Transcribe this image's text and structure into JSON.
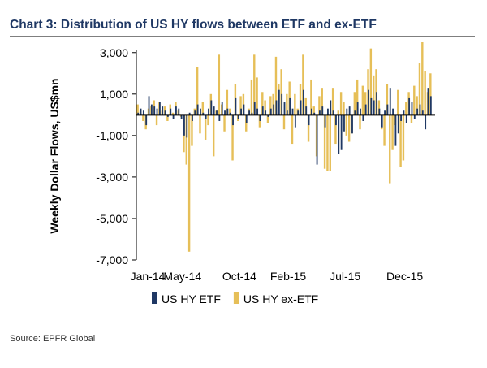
{
  "header": {
    "title": "Chart 3: Distribution of US HY flows between ETF and ex-ETF"
  },
  "source": "Source: EPFR Global",
  "chart_data": {
    "type": "bar",
    "title": "Chart 3: Distribution of US HY flows between ETF and ex-ETF",
    "xlabel": "",
    "ylabel": "Weekly Dollar Flows, US$mn",
    "ylim": [
      -7000,
      3500
    ],
    "yticks": [
      3000,
      1000,
      -1000,
      -3000,
      -5000,
      -7000
    ],
    "ytick_labels": [
      "3,000",
      "1,000",
      "-1,000",
      "-3,000",
      "-5,000",
      "-7,000"
    ],
    "xtick_labels": [
      "Jan-14",
      "May-14",
      "Oct-14",
      "Feb-15",
      "Jul-15",
      "Dec-15"
    ],
    "xtick_week_index": [
      0,
      17,
      38,
      56,
      77,
      99
    ],
    "grid": false,
    "legend_position": "bottom",
    "series": [
      {
        "name": "US HY ETF",
        "color": "#1f3864",
        "values": [
          100,
          300,
          200,
          -500,
          900,
          500,
          400,
          300,
          600,
          400,
          200,
          -100,
          300,
          -200,
          400,
          300,
          -200,
          -1000,
          -1100,
          100,
          -300,
          200,
          500,
          300,
          100,
          -200,
          300,
          700,
          400,
          200,
          -300,
          600,
          200,
          300,
          100,
          -500,
          800,
          -200,
          300,
          500,
          -400,
          200,
          100,
          600,
          300,
          -300,
          400,
          200,
          -100,
          300,
          500,
          700,
          1200,
          1000,
          600,
          200,
          800,
          300,
          -600,
          200,
          700,
          1200,
          400,
          -500,
          300,
          100,
          -2400,
          200,
          400,
          -600,
          300,
          700,
          200,
          -500,
          -1900,
          -1700,
          -800,
          300,
          400,
          -900,
          200,
          600,
          300,
          -300,
          500,
          1200,
          800,
          700,
          1100,
          300,
          -600,
          200,
          500,
          1300,
          300,
          -1500,
          -900,
          -300,
          200,
          -400,
          800,
          600,
          -200,
          300,
          500,
          200,
          -700,
          1300,
          900
        ]
      },
      {
        "name": "US HY ex-ETF",
        "color": "#e6bf58",
        "values": [
          500,
          200,
          -300,
          -700,
          300,
          400,
          700,
          -500,
          600,
          200,
          400,
          -300,
          500,
          100,
          600,
          200,
          -100,
          -1800,
          -2400,
          -6600,
          -1500,
          300,
          2300,
          -900,
          600,
          -1200,
          -500,
          1000,
          -2000,
          200,
          2900,
          500,
          -800,
          1200,
          300,
          -2200,
          1500,
          -300,
          900,
          1000,
          -800,
          300,
          1700,
          2900,
          1800,
          -600,
          1100,
          700,
          -400,
          900,
          1000,
          2800,
          1500,
          2200,
          -700,
          1000,
          1600,
          -1400,
          1000,
          300,
          1500,
          2900,
          800,
          -1300,
          1700,
          400,
          -2000,
          900,
          1300,
          -2600,
          -2700,
          -2700,
          1300,
          -1400,
          200,
          1100,
          600,
          -1000,
          -1300,
          -900,
          1100,
          1700,
          -700,
          1400,
          1100,
          2200,
          3200,
          1900,
          2200,
          700,
          -700,
          -1500,
          1500,
          -3300,
          -1700,
          -500,
          1200,
          -2500,
          -2200,
          600,
          1100,
          -400,
          1400,
          900,
          2500,
          3500,
          2100,
          1100,
          2000
        ]
      }
    ]
  }
}
